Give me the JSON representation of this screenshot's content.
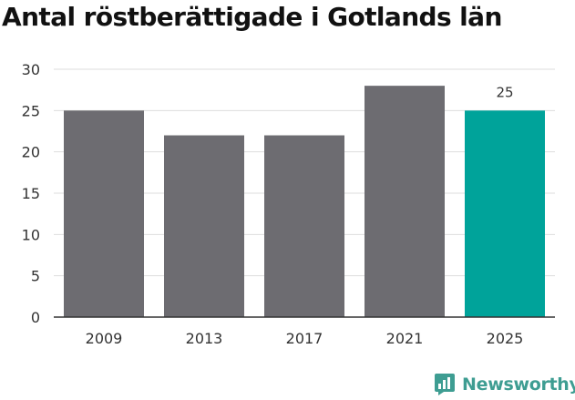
{
  "chart_data": {
    "type": "bar",
    "title": "Antal röstberättigade i Gotlands län",
    "categories": [
      "2009",
      "2013",
      "2017",
      "2021",
      "2025"
    ],
    "values": [
      25,
      22,
      22,
      28,
      25
    ],
    "ylim": [
      0,
      30
    ],
    "yticks": [
      "0",
      "5",
      "10",
      "15",
      "20",
      "25",
      "30"
    ],
    "grid": true,
    "highlight_index": 4,
    "data_labels": [
      {
        "index": 4,
        "text": "25"
      }
    ],
    "colors": {
      "bar": "#6d6c71",
      "highlight": "#00a39a",
      "grid": "#dddddd",
      "axis": "#333333",
      "text": "#333333"
    }
  },
  "brand": {
    "name": "Newsworthy",
    "color": "#3e9d92",
    "icon": "bar-chart-logo-icon"
  }
}
